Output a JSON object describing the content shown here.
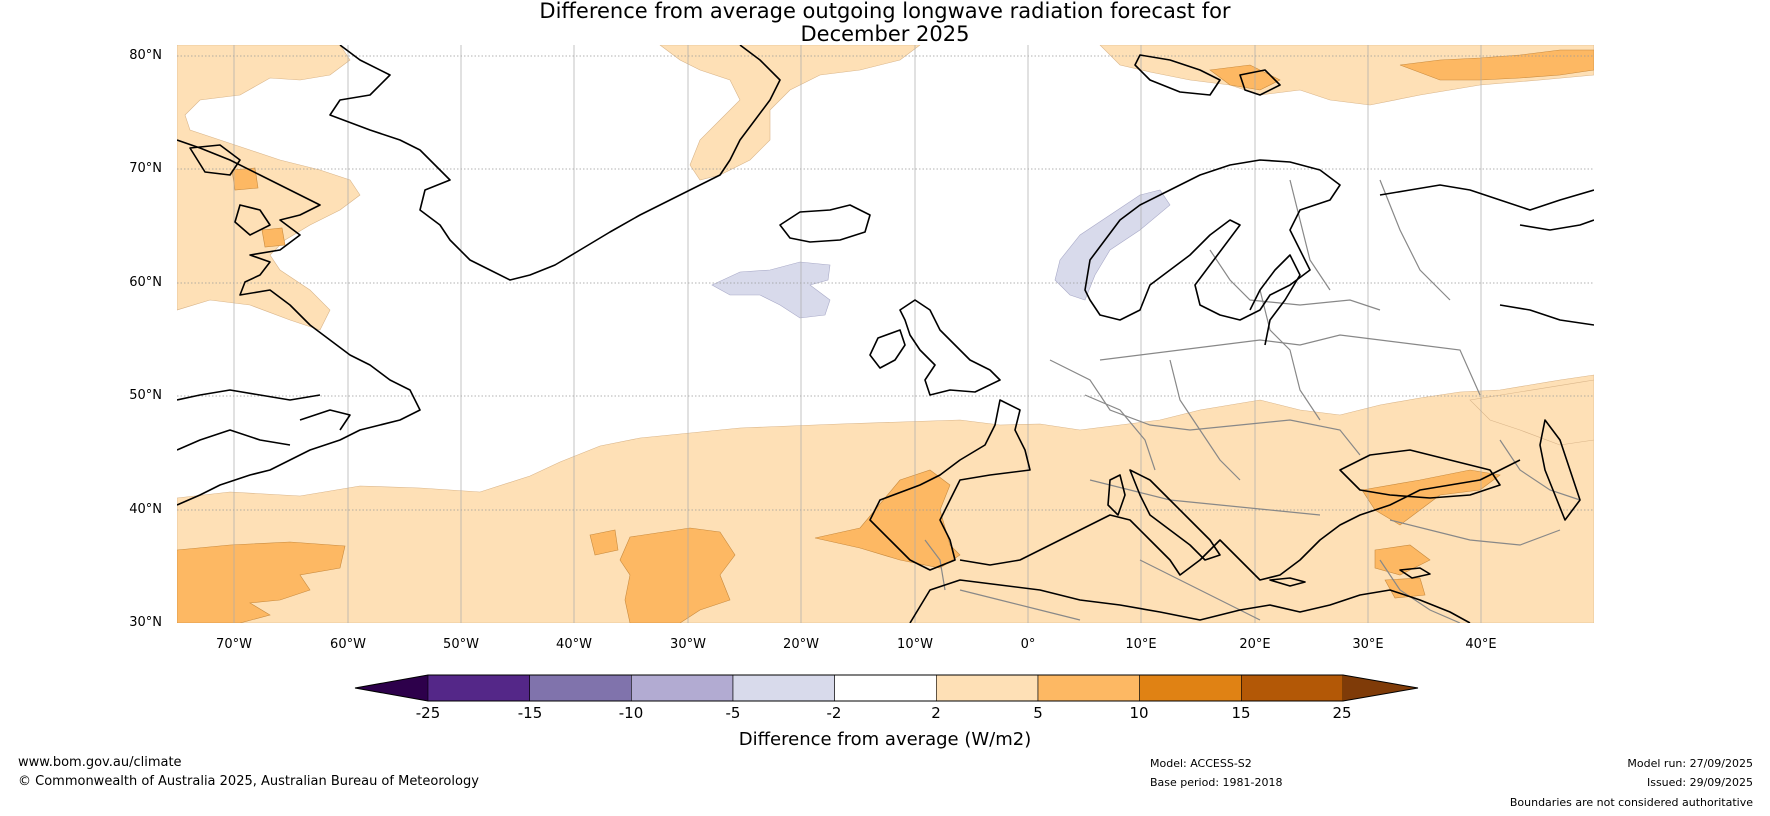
{
  "title_line1": "Difference from average outgoing longwave radiation forecast for",
  "title_line2": "December 2025",
  "lat_labels": [
    "80°N",
    "70°N",
    "60°N",
    "50°N",
    "40°N",
    "30°N"
  ],
  "lon_labels": [
    "70°W",
    "60°W",
    "50°W",
    "40°W",
    "30°W",
    "20°W",
    "10°W",
    "0°",
    "10°E",
    "20°E",
    "30°E",
    "40°E"
  ],
  "colorbar": {
    "ticks": [
      "-25",
      "-15",
      "-10",
      "-5",
      "-2",
      "2",
      "5",
      "10",
      "15",
      "25"
    ],
    "colors": [
      "#2d004b",
      "#542788",
      "#8073ac",
      "#b2abd2",
      "#d8daeb",
      "#ffffff",
      "#fee0b6",
      "#fdb863",
      "#e08214",
      "#b35806",
      "#7f3b08"
    ],
    "title": "Difference from average (W/m2)"
  },
  "footer": {
    "url": "www.bom.gov.au/climate",
    "copyright": "© Commonwealth of Australia 2025, Australian Bureau of Meteorology",
    "model": "Model: ACCESS-S2",
    "base_period": "Base period: 1981-2018",
    "model_run": "Model run: 27/09/2025",
    "issued": "Issued: 29/09/2025",
    "disclaimer": "Boundaries are not considered authoritative"
  },
  "colors": {
    "light_orange": "#fee0b6",
    "orange": "#fdb863",
    "light_purple": "#d8daeb",
    "coast": "#000000",
    "border": "#888888",
    "grid": "#999999"
  }
}
